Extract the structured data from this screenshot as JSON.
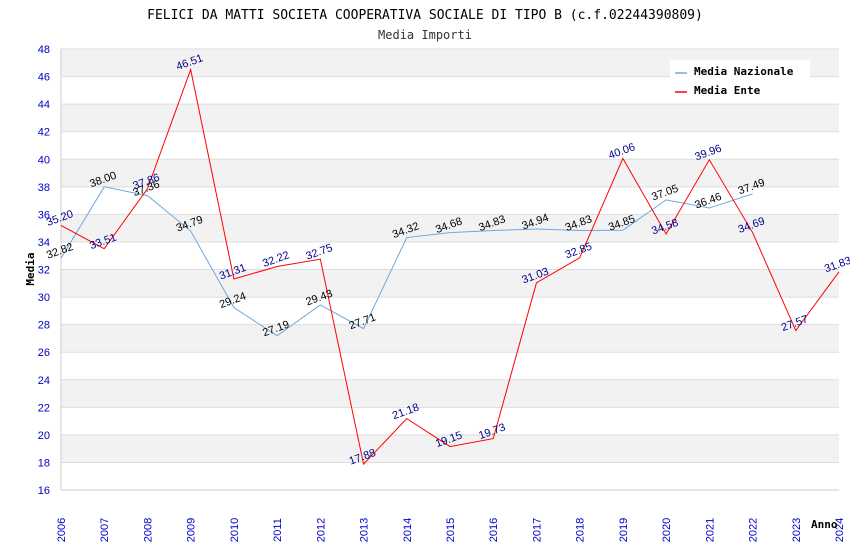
{
  "chart_data": {
    "type": "line",
    "title": "FELICI DA MATTI SOCIETA COOPERATIVA SOCIALE DI TIPO B (c.f.02244390809)",
    "subtitle": "Media Importi",
    "xlabel": "Anno",
    "ylabel": "Media",
    "ylim": [
      16,
      48
    ],
    "ystep": 2,
    "grid": true,
    "legend_position": "top-right",
    "categories": [
      "2006",
      "2007",
      "2008",
      "2009",
      "2010",
      "2011",
      "2012",
      "2013",
      "2014",
      "2015",
      "2016",
      "2017",
      "2018",
      "2019",
      "2020",
      "2021",
      "2022",
      "2023",
      "2024"
    ],
    "series": [
      {
        "name": "Media Nazionale",
        "color": "#6fa8dc",
        "label_color": "#000000",
        "values": [
          32.82,
          38.0,
          37.36,
          34.79,
          29.24,
          27.19,
          29.43,
          27.71,
          34.32,
          34.68,
          34.83,
          34.94,
          34.83,
          34.85,
          37.05,
          36.46,
          37.49,
          null,
          null
        ],
        "labels": [
          "32.82",
          "38.00",
          "37.36",
          "34.79",
          "29.24",
          "27.19",
          "29.43",
          "27.71",
          "34.32",
          "34.68",
          "34.83",
          "34.94",
          "34.83",
          "34.85",
          "37.05",
          "36.46",
          "37.49",
          null,
          null
        ]
      },
      {
        "name": "Media Ente",
        "color": "#ff0000",
        "label_color": "#00008b",
        "values": [
          35.2,
          33.51,
          37.86,
          46.51,
          31.31,
          32.22,
          32.75,
          17.88,
          21.18,
          19.15,
          19.73,
          31.03,
          32.85,
          40.06,
          34.58,
          39.96,
          34.69,
          27.57,
          31.83
        ],
        "labels": [
          "35.20",
          "33.51",
          "37.86",
          "46.51",
          "31.31",
          "32.22",
          "32.75",
          "17.88",
          "21.18",
          "19.15",
          "19.73",
          "31.03",
          "32.85",
          "40.06",
          "34.58",
          "39.96",
          "34.69",
          "27.57",
          "31.83"
        ]
      }
    ]
  }
}
